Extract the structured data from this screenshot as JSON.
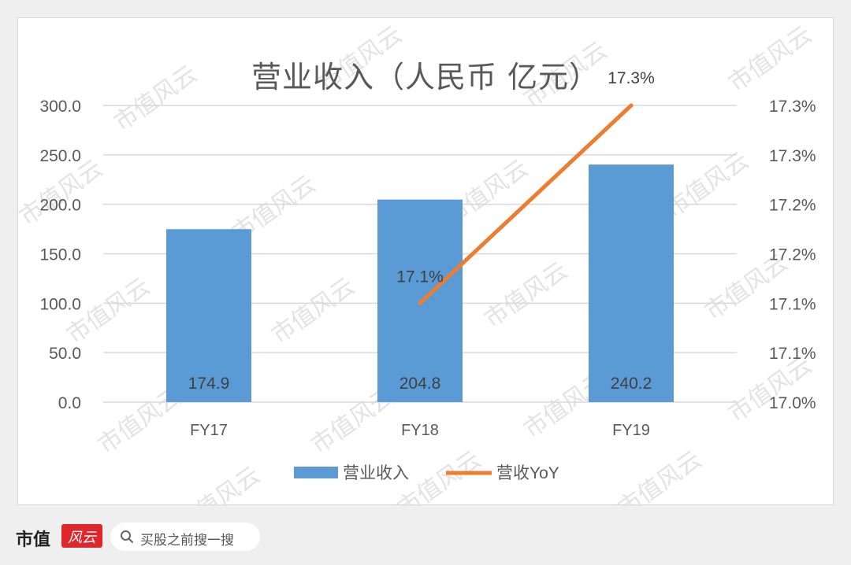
{
  "chart_data": {
    "type": "bar",
    "title": "营业收入（人民币 亿元）",
    "categories": [
      "FY17",
      "FY18",
      "FY19"
    ],
    "series": [
      {
        "name": "营业收入",
        "type": "bar",
        "axis": "left",
        "color": "#5b9bd5",
        "values": [
          174.9,
          204.8,
          240.2
        ],
        "labels": [
          "174.9",
          "204.8",
          "240.2"
        ]
      },
      {
        "name": "营收YoY",
        "type": "line",
        "axis": "right",
        "color": "#ed7d31",
        "values": [
          null,
          17.1,
          17.3
        ],
        "labels": [
          "",
          "17.1%",
          "17.3%"
        ]
      }
    ],
    "y_left": {
      "ylim": [
        0,
        300
      ],
      "ticks": [
        0,
        50,
        100,
        150,
        200,
        250,
        300
      ],
      "tick_labels": [
        "0.0",
        "50.0",
        "100.0",
        "150.0",
        "200.0",
        "250.0",
        "300.0"
      ]
    },
    "y_right": {
      "ylim": [
        17.0,
        17.3
      ],
      "ticks": [
        17.0,
        17.05,
        17.1,
        17.15,
        17.2,
        17.25,
        17.3
      ],
      "tick_labels": [
        "17.0%",
        "17.1%",
        "17.1%",
        "17.2%",
        "17.2%",
        "17.3%",
        "17.3%"
      ]
    },
    "grid": true,
    "legend": "bottom"
  },
  "watermark": "市值风云",
  "footer": {
    "brand": "市值",
    "logo_text": "风云",
    "search_placeholder": "买股之前搜一搜"
  }
}
